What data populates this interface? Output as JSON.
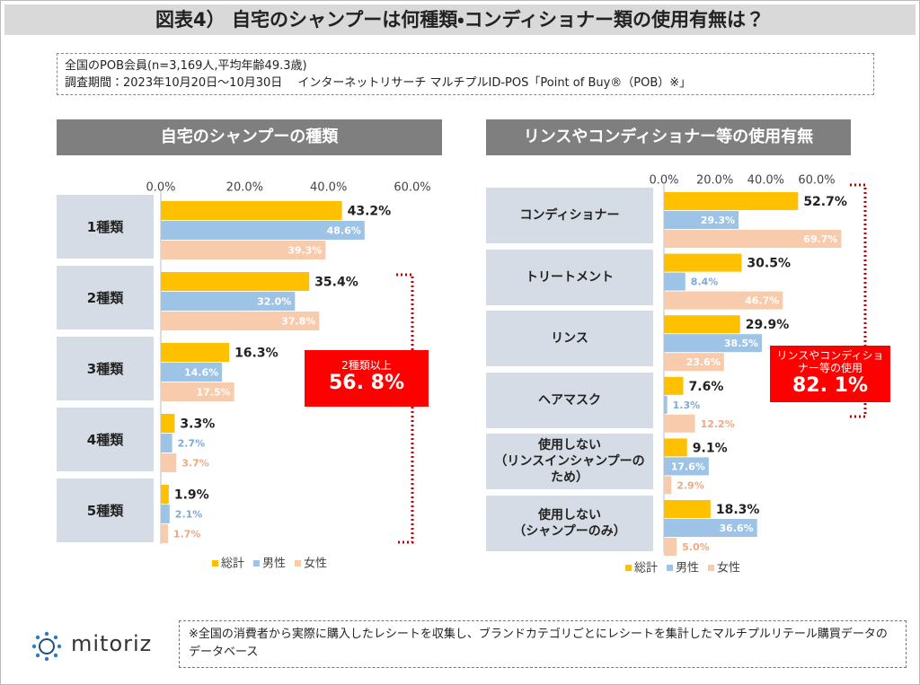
{
  "header": {
    "title": "図表4） 自宅のシャンプーは何種類・コンディショナー類の使用有無は？"
  },
  "info": {
    "lines": [
      "全国のPOB会員(n=3,169人,平均年齢49.3歳)",
      "調査期間：2023年10月20日～10月30日　 インターネットリサーチ マルチプルID-POS「Point of Buy®（POB）※」"
    ]
  },
  "chart_data": [
    {
      "type": "bar",
      "orientation": "horizontal",
      "title": "自宅のシャンプーの種類",
      "categories": [
        "1種類",
        "2種類",
        "3種類",
        "4種類",
        "5種類"
      ],
      "series": [
        {
          "name": "総計",
          "color": "#ffc000",
          "values": [
            43.2,
            35.4,
            16.3,
            3.3,
            1.9
          ],
          "value_labels": [
            "43.2%",
            "35.4%",
            "16.3%",
            "3.3%",
            "1.9%"
          ]
        },
        {
          "name": "男性",
          "color": "#9dc3e6",
          "values": [
            48.6,
            32.0,
            14.6,
            2.7,
            2.1
          ],
          "value_labels": [
            "48.6%",
            "32.0%",
            "14.6%",
            "2.7%",
            "2.1%"
          ]
        },
        {
          "name": "女性",
          "color": "#f8cbad",
          "values": [
            39.3,
            37.8,
            17.5,
            3.7,
            1.7
          ],
          "value_labels": [
            "39.3%",
            "37.8%",
            "17.5%",
            "3.7%",
            "1.7%"
          ]
        }
      ],
      "xlim": [
        0,
        60
      ],
      "xticks": [
        {
          "value": 0,
          "label": "0.0%"
        },
        {
          "value": 20,
          "label": "20.0%"
        },
        {
          "value": 40,
          "label": "40.0%"
        },
        {
          "value": 60,
          "label": "60.0%"
        }
      ],
      "legend": "bottom",
      "annotation": {
        "text": "2種類以上",
        "value": "56. 8%"
      }
    },
    {
      "type": "bar",
      "orientation": "horizontal",
      "title": "リンスやコンディショナー等の使用有無",
      "categories": [
        "コンディショナー",
        "トリートメント",
        "リンス",
        "ヘアマスク",
        "使用しない\n（リンスインシャンプーの\nため）",
        "使用しない\n（シャンプーのみ）"
      ],
      "series": [
        {
          "name": "総計",
          "color": "#ffc000",
          "values": [
            52.7,
            30.5,
            29.9,
            7.6,
            9.1,
            18.3
          ],
          "value_labels": [
            "52.7%",
            "30.5%",
            "29.9%",
            "7.6%",
            "9.1%",
            "18.3%"
          ]
        },
        {
          "name": "男性",
          "color": "#9dc3e6",
          "values": [
            29.3,
            8.4,
            38.5,
            1.3,
            17.6,
            36.6
          ],
          "value_labels": [
            "29.3%",
            "8.4%",
            "38.5%",
            "1.3%",
            "17.6%",
            "36.6%"
          ]
        },
        {
          "name": "女性",
          "color": "#f8cbad",
          "values": [
            69.7,
            46.7,
            23.6,
            12.2,
            2.9,
            5.0
          ],
          "value_labels": [
            "69.7%",
            "46.7%",
            "23.6%",
            "12.2%",
            "2.9%",
            "5.0%"
          ]
        }
      ],
      "xlim": [
        0,
        60
      ],
      "xticks": [
        {
          "value": 0,
          "label": "0.0%"
        },
        {
          "value": 20,
          "label": "20.0%"
        },
        {
          "value": 40,
          "label": "40.0%"
        },
        {
          "value": 60,
          "label": "60.0%"
        }
      ],
      "legend": "bottom",
      "annotation": {
        "text": "リンスやコンディショナー等の使用",
        "value": "82. 1%"
      }
    }
  ],
  "footer": {
    "logo": "mitoriz",
    "note": "※全国の消費者から実際に購入したレシートを収集し、ブランドカテゴリごとにレシートを集計したマルチプルリテール購買データのデータベース"
  }
}
